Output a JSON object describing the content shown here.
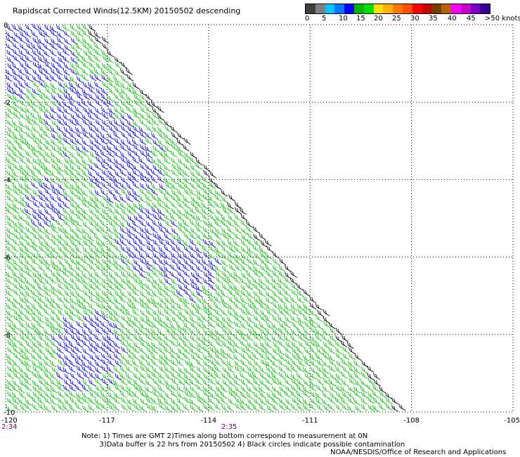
{
  "title": "Rapidscat Corrected Winds(12.5KM) 20150502 descending",
  "legend": {
    "colors": [
      "#404040",
      "#808080",
      "#00c8ff",
      "#0078ff",
      "#0000ff",
      "#00b400",
      "#00e000",
      "#ffe000",
      "#ffb400",
      "#ff7800",
      "#ff5000",
      "#ff0000",
      "#c80000",
      "#783c00",
      "#b46400",
      "#ff00ff",
      "#c800c8",
      "#7800c8",
      "#3c0096"
    ],
    "labels": [
      "0",
      "5",
      "10",
      "15",
      "20",
      "25",
      "30",
      "35",
      "40",
      "45",
      ">50 knots"
    ]
  },
  "notes": {
    "line1": "Note: 1) Times are GMT 2)Times along bottom correspond to measurement at 0N",
    "line2": "3)Data buffer is 22 hrs from 20150502 4) Black circles indicate possible contamination"
  },
  "credit": "NOAA/NESDIS/Office of Research and Applications",
  "chart_data": {
    "type": "scatter",
    "projection": "lat-lon",
    "lon_range": [
      -120,
      -105
    ],
    "lat_range": [
      -10,
      0
    ],
    "x_ticks": [
      "-120",
      "-117",
      "-114",
      "-111",
      "-108",
      "-105"
    ],
    "y_ticks": [
      "0",
      "-2",
      "-4",
      "-6",
      "-8",
      "-10"
    ],
    "y_tick_values": [
      0,
      -2,
      -4,
      -6,
      -8,
      -10
    ],
    "time_labels": [
      {
        "lon": -120,
        "text": "2:34"
      },
      {
        "lon": -113.5,
        "text": "2:35"
      }
    ],
    "grid": true,
    "swath_edge": [
      [
        -117.5,
        0
      ],
      [
        -108.2,
        -10
      ]
    ],
    "wind_field": {
      "symbol": "wind barbs",
      "direction_from_deg": 60,
      "speed_knots_dominant": [
        10,
        20
      ],
      "colors": {
        "10-15 kt": "#0000ff",
        "15-20 kt": "#00c800",
        "edge": "#000000"
      }
    }
  }
}
